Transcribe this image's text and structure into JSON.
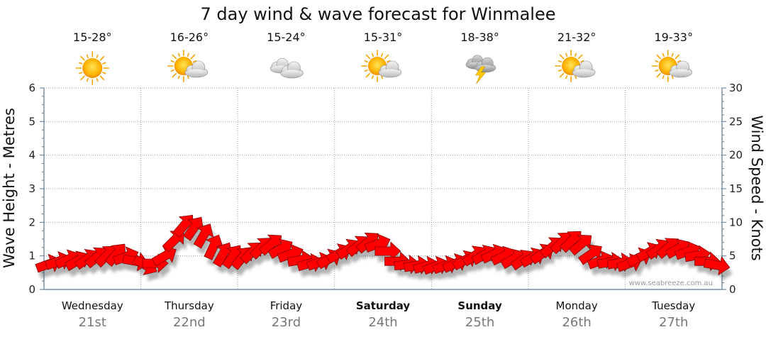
{
  "chart_data": {
    "type": "scatter",
    "title": "7 day wind & wave forecast for Winmalee",
    "ylabel_left": "Wave Height - Metres",
    "ylabel_right": "Wind Speed - Knots",
    "ylim_left": [
      0,
      6
    ],
    "ylim_right": [
      0,
      30
    ],
    "yticks_left": [
      "0",
      "1",
      "2",
      "3",
      "4",
      "5",
      "6"
    ],
    "yticks_right": [
      "0",
      "5",
      "10",
      "15",
      "20",
      "25",
      "30"
    ],
    "grid": true,
    "credit": "www.seabreeze.com.au",
    "days": [
      {
        "name": "Wednesday",
        "date": "21st",
        "bold": false,
        "temp": "15-28°",
        "icon": "sunny-icon"
      },
      {
        "name": "Thursday",
        "date": "22nd",
        "bold": false,
        "temp": "16-26°",
        "icon": "partly-cloudy-icon"
      },
      {
        "name": "Friday",
        "date": "23rd",
        "bold": false,
        "temp": "15-24°",
        "icon": "cloudy-icon"
      },
      {
        "name": "Saturday",
        "date": "24th",
        "bold": true,
        "temp": "15-31°",
        "icon": "partly-cloudy-icon"
      },
      {
        "name": "Sunday",
        "date": "25th",
        "bold": true,
        "temp": "18-38°",
        "icon": "thunderstorm-icon"
      },
      {
        "name": "Monday",
        "date": "26th",
        "bold": false,
        "temp": "21-32°",
        "icon": "partly-cloudy-icon"
      },
      {
        "name": "Tuesday",
        "date": "27th",
        "bold": false,
        "temp": "19-33°",
        "icon": "partly-cloudy-icon"
      }
    ],
    "series": [
      {
        "kind": "wind-arrows",
        "color": "#ff0000",
        "x_day": [
          0.0,
          0.1,
          0.2,
          0.3,
          0.4,
          0.5,
          0.6,
          0.7,
          0.8,
          0.9,
          1.0,
          1.1,
          1.2,
          1.3,
          1.4,
          1.5,
          1.6,
          1.7,
          1.8,
          1.9,
          2.0,
          2.1,
          2.2,
          2.3,
          2.4,
          2.5,
          2.6,
          2.7,
          2.8,
          2.9,
          3.0,
          3.1,
          3.2,
          3.3,
          3.4,
          3.5,
          3.6,
          3.7,
          3.8,
          3.9,
          4.0,
          4.1,
          4.2,
          4.3,
          4.4,
          4.5,
          4.6,
          4.7,
          4.8,
          4.9,
          5.0,
          5.1,
          5.2,
          5.3,
          5.4,
          5.5,
          5.6,
          5.7,
          5.8,
          5.9,
          6.0,
          6.1,
          6.2,
          6.3,
          6.4,
          6.5,
          6.6,
          6.7,
          6.8,
          6.9
        ],
        "knots": [
          3.8,
          4.2,
          4.5,
          4.3,
          4.6,
          4.9,
          5.1,
          5.3,
          4.9,
          4.2,
          3.6,
          3.9,
          5.0,
          7.4,
          9.6,
          9.2,
          8.1,
          6.4,
          5.3,
          5.0,
          4.8,
          5.6,
          6.3,
          6.8,
          6.1,
          5.3,
          4.4,
          3.9,
          4.1,
          4.6,
          5.4,
          6.1,
          6.6,
          7.1,
          6.8,
          5.7,
          4.2,
          3.7,
          3.6,
          3.5,
          3.5,
          3.6,
          3.9,
          4.4,
          5.1,
          5.2,
          5.3,
          5.0,
          4.6,
          4.5,
          4.8,
          5.4,
          6.4,
          7.1,
          7.3,
          6.8,
          5.3,
          4.3,
          4.1,
          4.0,
          3.9,
          4.8,
          5.6,
          6.1,
          6.3,
          6.1,
          5.7,
          5.1,
          4.2,
          3.6
        ],
        "direction_deg": [
          250,
          250,
          245,
          240,
          235,
          230,
          225,
          220,
          250,
          280,
          300,
          270,
          240,
          225,
          220,
          215,
          210,
          205,
          210,
          215,
          220,
          225,
          225,
          230,
          240,
          250,
          260,
          255,
          250,
          240,
          240,
          235,
          230,
          230,
          250,
          270,
          270,
          265,
          260,
          255,
          250,
          250,
          245,
          240,
          235,
          240,
          245,
          245,
          240,
          235,
          240,
          235,
          230,
          225,
          225,
          230,
          235,
          250,
          260,
          260,
          250,
          245,
          240,
          235,
          230,
          240,
          250,
          260,
          270,
          280
        ]
      }
    ]
  }
}
